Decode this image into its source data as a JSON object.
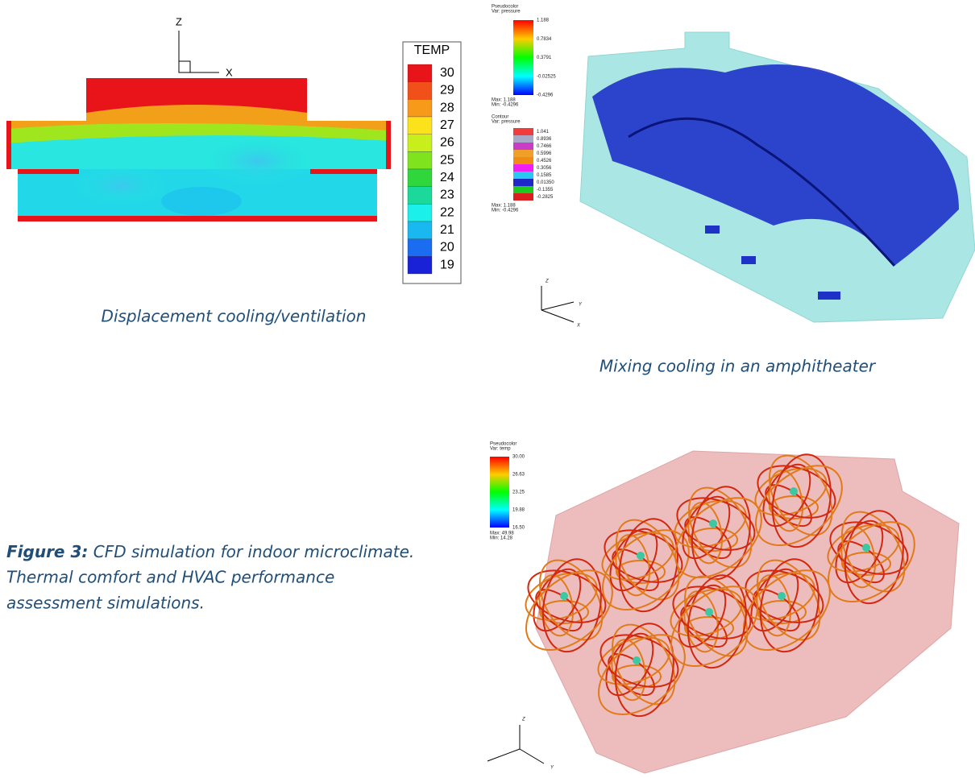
{
  "displacement": {
    "axes": {
      "z": "Z",
      "x": "X"
    },
    "legend": {
      "title": "TEMP",
      "levels": [
        "30",
        "29",
        "28",
        "27",
        "26",
        "25",
        "24",
        "23",
        "22",
        "21",
        "20",
        "19"
      ],
      "colors": [
        "#e8141a",
        "#f2501a",
        "#f79a1a",
        "#fbe21a",
        "#c8ef1c",
        "#7fe41e",
        "#2fd63c",
        "#1ad99a",
        "#1cf0ea",
        "#1ab8f0",
        "#1a6cf0",
        "#1a22d8"
      ]
    },
    "caption": "Displacement cooling/ventilation"
  },
  "mixing": {
    "pseudocolor": {
      "title": "Pseudocolor",
      "var": "Var: pressure",
      "labels": [
        "1.188",
        "0.7834",
        "0.3791",
        "-0.02525",
        "-0.4296"
      ],
      "max": "Max: 1.188",
      "min": "Min: -0.4296"
    },
    "contour": {
      "title": "Contour",
      "var": "Var: pressure",
      "labels": [
        "1.041",
        "0.8936",
        "0.7466",
        "0.5996",
        "0.4526",
        "0.3056",
        "0.1585",
        "0.01350",
        "-0.1355",
        "-0.2825"
      ],
      "colors": [
        "#f03c3c",
        "#a8a8c8",
        "#c83cc8",
        "#f0a028",
        "#f08c14",
        "#f01ef0",
        "#28c8f0",
        "#1e28c8",
        "#1ec81e",
        "#dc1e1e"
      ],
      "max": "Max: 1.188",
      "min": "Min: -0.4296"
    },
    "axes": {
      "z": "Z",
      "y": "Y",
      "x": "X"
    },
    "caption": "Mixing cooling in an amphitheater"
  },
  "streamlines": {
    "pseudocolor": {
      "title": "Pseudocolor",
      "var": "Var: temp",
      "labels": [
        "30.00",
        "26.63",
        "23.25",
        "19.88",
        "16.50"
      ],
      "max": "Max: 49.98",
      "min": "Min: 14.28"
    },
    "axes": {
      "z": "Z",
      "y": "Y"
    }
  },
  "figure_caption": {
    "label": "Figure 3:",
    "lines": [
      "CFD simulation for indoor microclimate.",
      "Thermal comfort and HVAC performance",
      "assessment simulations."
    ]
  }
}
